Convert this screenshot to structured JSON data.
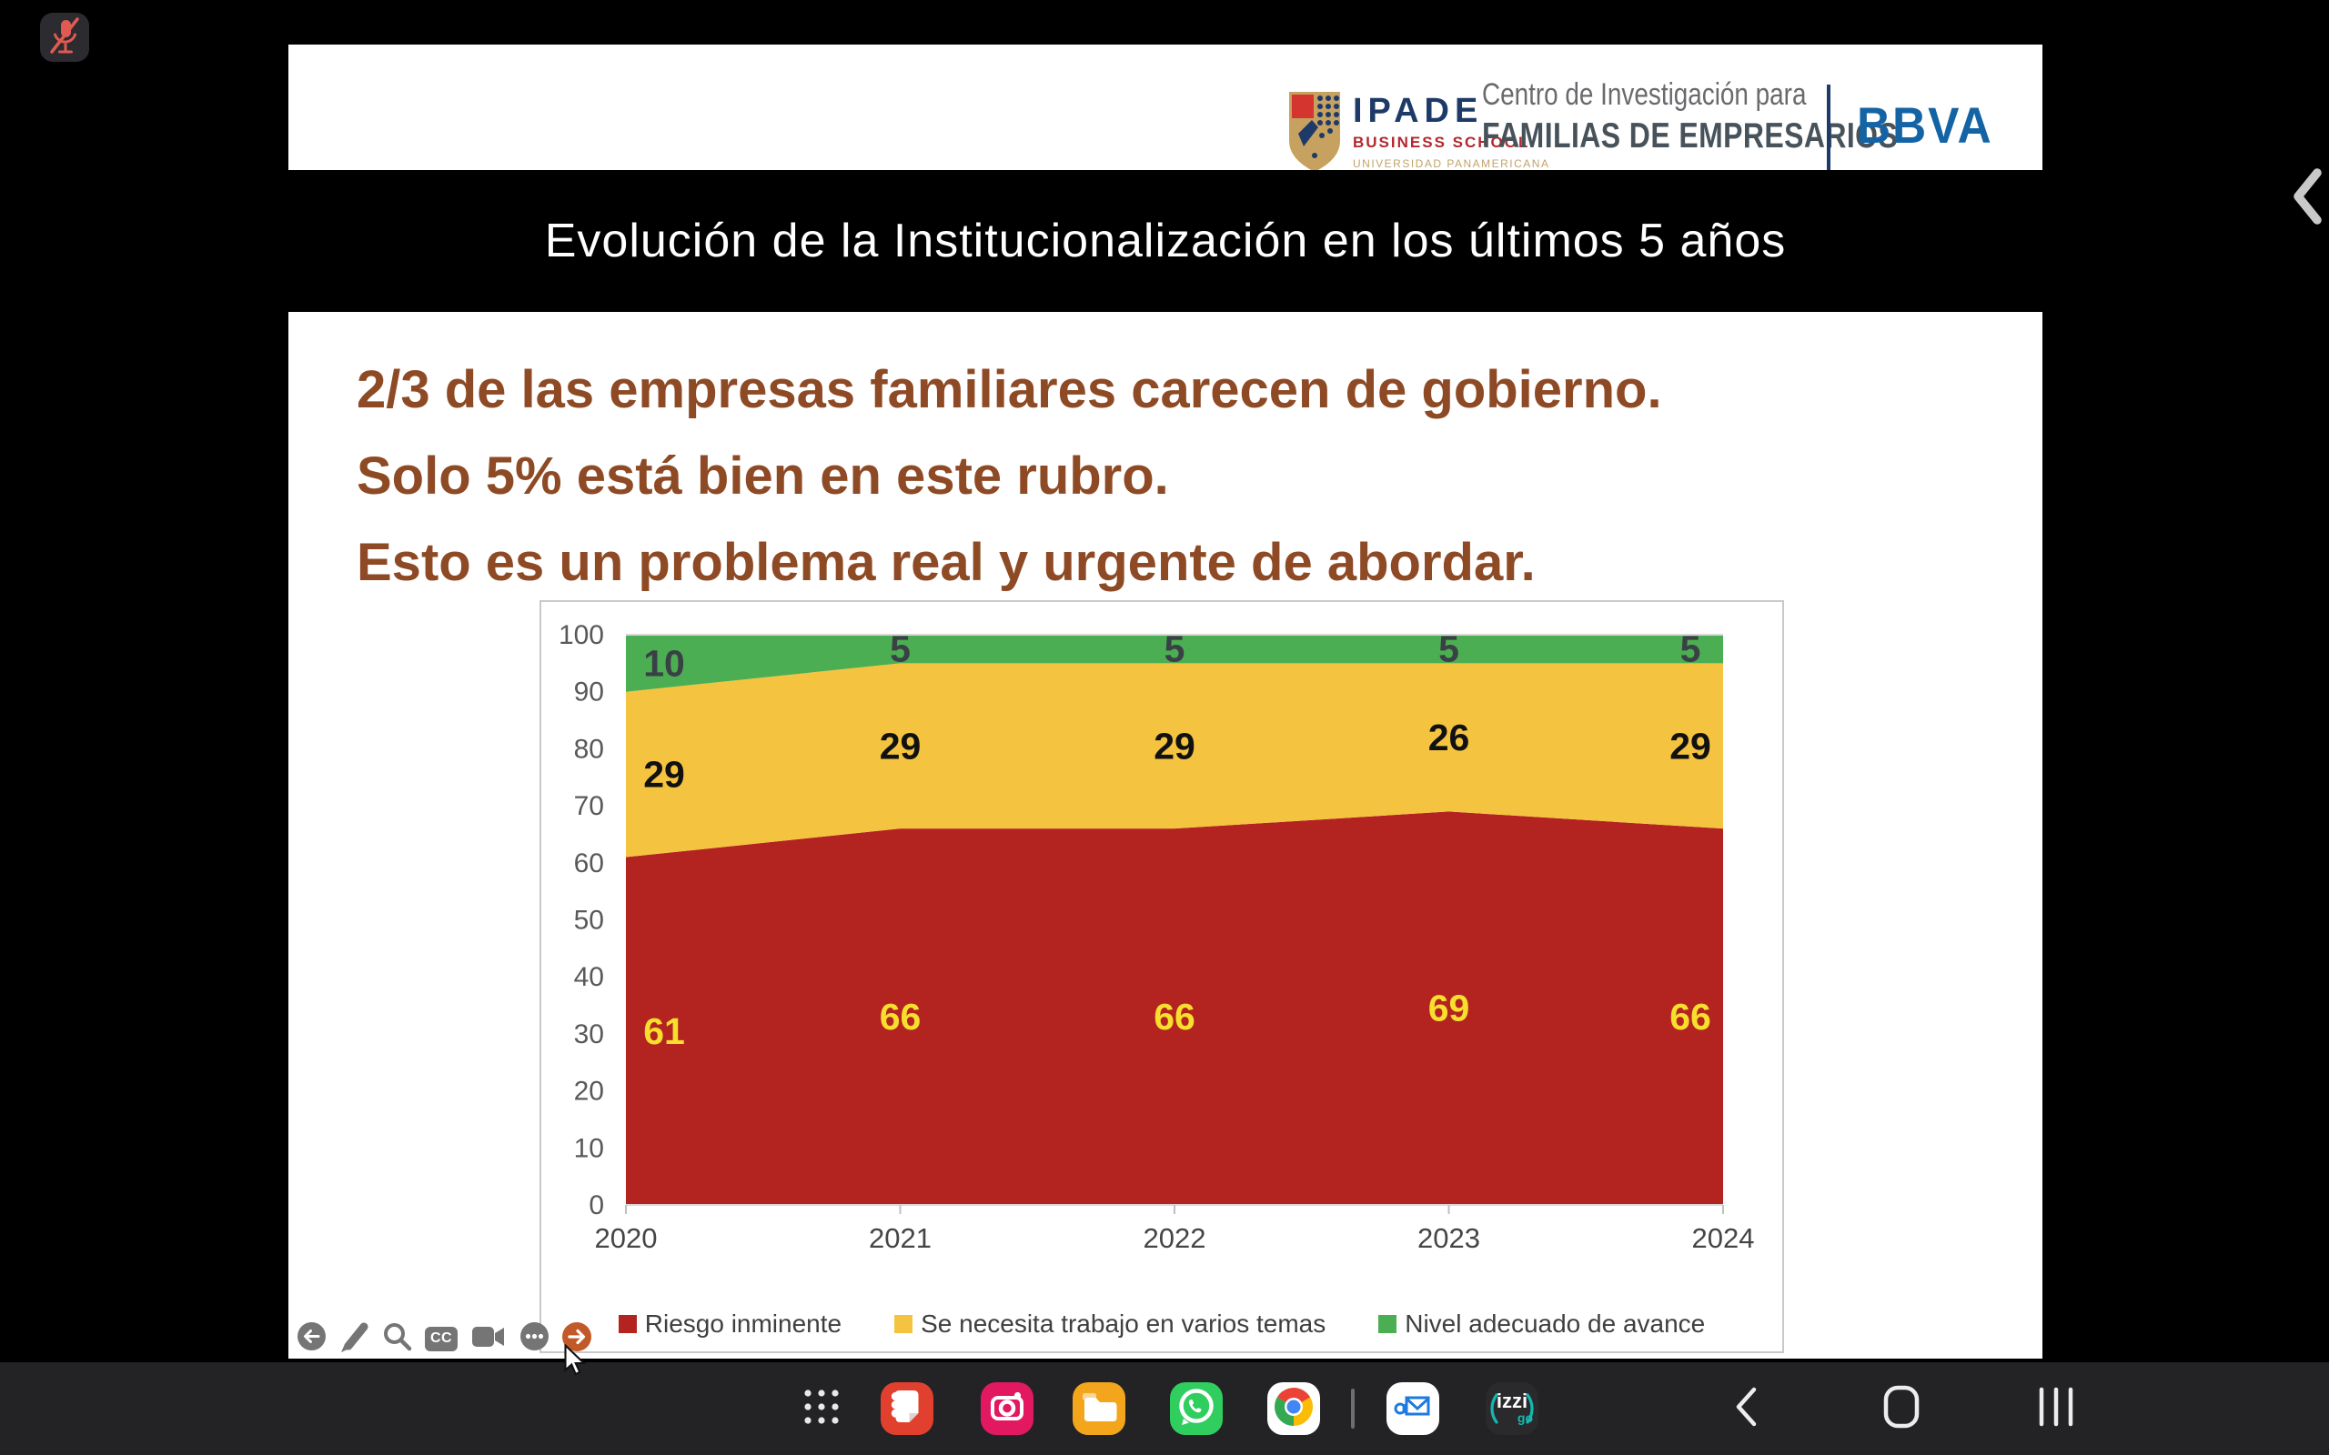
{
  "system": {
    "mic_icon": "muted-microphone",
    "edge_handle_icon": "chevron-left",
    "cursor": "arrow-pointer"
  },
  "slide": {
    "header": {
      "ipade_logo": {
        "name": "IPADE",
        "subtitle": "BUSINESS SCHOOL",
        "university": "UNIVERSIDAD PANAMERICANA"
      },
      "center_line1": "Centro de Investigación para",
      "center_line2": "FAMILIAS DE EMPRESARIOS",
      "bbva": "BBVA"
    },
    "title": "Evolución de la Institucionalización en los últimos 5 años",
    "message": {
      "line1": "2/3 de las empresas familiares carecen de gobierno.",
      "line2": "Solo 5% está bien en este rubro.",
      "line3": "Esto es un problema real y urgente de abordar.",
      "color": "#8e4a25"
    },
    "toolbar": {
      "captions_label": "CC",
      "buttons": [
        "previous",
        "draw",
        "search",
        "captions",
        "record",
        "more",
        "next"
      ],
      "next_color": "#c15a28",
      "gray": "#757575"
    }
  },
  "chart_data": {
    "type": "area",
    "stacked": true,
    "x": [
      2020,
      2021,
      2022,
      2023,
      2024
    ],
    "series": [
      {
        "name": "Riesgo inminente",
        "color": "#b32421",
        "label_color": "#f8df2e",
        "values": [
          61,
          66,
          66,
          69,
          66
        ]
      },
      {
        "name": "Se necesita trabajo en varios temas",
        "color": "#f4c440",
        "label_color": "#111111",
        "values": [
          29,
          29,
          29,
          26,
          29
        ]
      },
      {
        "name": "Nivel adecuado de avance",
        "color": "#4cae52",
        "label_color": "#3a4045",
        "values": [
          10,
          5,
          5,
          5,
          5
        ]
      }
    ],
    "ylim": [
      0,
      100
    ],
    "yticks": [
      0,
      10,
      20,
      30,
      40,
      50,
      60,
      70,
      80,
      90,
      100
    ],
    "xlabel": "",
    "ylabel": "",
    "title": "",
    "grid": false,
    "legend_position": "bottom"
  },
  "taskbar": {
    "apps": [
      "app-drawer",
      "notes",
      "camera",
      "my-files",
      "whatsapp",
      "chrome",
      "email",
      "izzi-go"
    ],
    "izzi_label": "izzi",
    "izzi_sub": "go",
    "nav": [
      "back",
      "home",
      "recents"
    ]
  }
}
